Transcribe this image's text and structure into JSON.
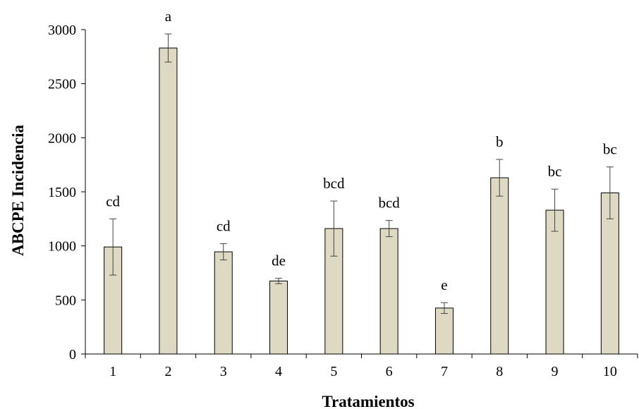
{
  "chart_data": {
    "type": "bar",
    "categories": [
      "1",
      "2",
      "3",
      "4",
      "5",
      "6",
      "7",
      "8",
      "9",
      "10"
    ],
    "series": [
      {
        "values": [
          990,
          2830,
          945,
          675,
          1160,
          1160,
          425,
          1630,
          1330,
          1490
        ],
        "error": [
          260,
          130,
          75,
          25,
          255,
          75,
          50,
          170,
          195,
          240
        ],
        "letters": [
          "cd",
          "a",
          "cd",
          "de",
          "bcd",
          "bcd",
          "e",
          "b",
          "bc",
          "bc"
        ]
      }
    ],
    "xlabel": "Tratamientos",
    "ylabel": "ABCPE Incidencia",
    "ylim": [
      0,
      3000
    ],
    "yticks": [
      "0",
      "500",
      "1000",
      "1500",
      "2000",
      "2500",
      "3000"
    ],
    "grid": false,
    "bar_color": "#ddd9c3",
    "bar_edge_color": "#000000"
  }
}
